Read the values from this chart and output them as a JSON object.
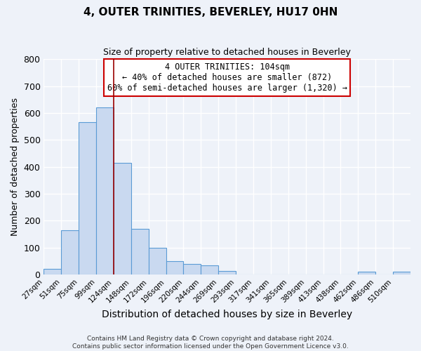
{
  "title": "4, OUTER TRINITIES, BEVERLEY, HU17 0HN",
  "subtitle": "Size of property relative to detached houses in Beverley",
  "xlabel": "Distribution of detached houses by size in Beverley",
  "ylabel": "Number of detached properties",
  "bar_color": "#c9d9f0",
  "bar_edge_color": "#5b9bd5",
  "bar_values": [
    20,
    165,
    565,
    620,
    415,
    170,
    100,
    50,
    40,
    35,
    12,
    0,
    0,
    0,
    0,
    0,
    0,
    0,
    10,
    0,
    10
  ],
  "bin_labels": [
    "27sqm",
    "51sqm",
    "75sqm",
    "99sqm",
    "124sqm",
    "148sqm",
    "172sqm",
    "196sqm",
    "220sqm",
    "244sqm",
    "269sqm",
    "293sqm",
    "317sqm",
    "341sqm",
    "365sqm",
    "389sqm",
    "413sqm",
    "438sqm",
    "462sqm",
    "486sqm",
    "510sqm"
  ],
  "ylim": [
    0,
    800
  ],
  "yticks": [
    0,
    100,
    200,
    300,
    400,
    500,
    600,
    700,
    800
  ],
  "vline_x_bin": 3,
  "vline_color": "#990000",
  "annotation_title": "4 OUTER TRINITIES: 104sqm",
  "annotation_line1": "← 40% of detached houses are smaller (872)",
  "annotation_line2": "60% of semi-detached houses are larger (1,320) →",
  "annotation_box_color": "#ffffff",
  "annotation_box_edge": "#cc0000",
  "footer1": "Contains HM Land Registry data © Crown copyright and database right 2024.",
  "footer2": "Contains public sector information licensed under the Open Government Licence v3.0.",
  "background_color": "#eef2f9",
  "grid_color": "#ffffff"
}
